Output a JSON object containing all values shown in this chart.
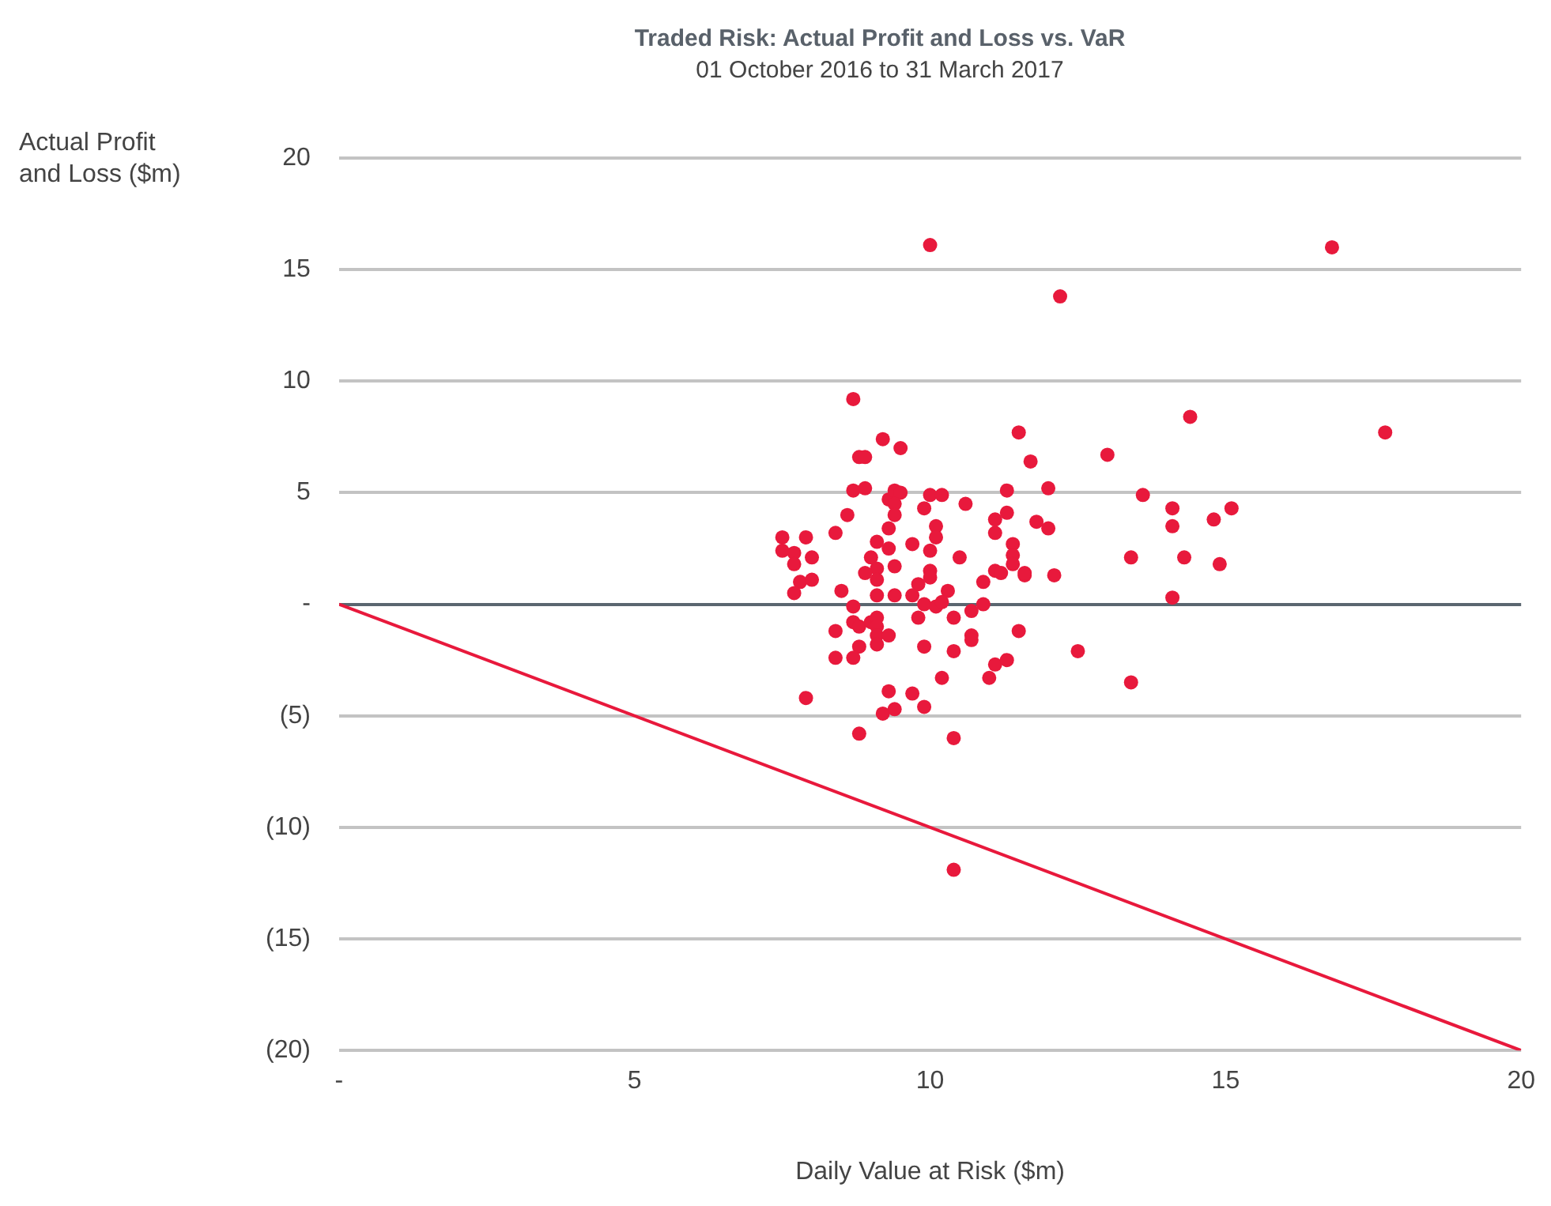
{
  "chart_data": {
    "type": "scatter",
    "title": "Traded Risk: Actual Profit and Loss vs. VaR",
    "subtitle": "01 October 2016 to 31 March 2017",
    "xlabel": "Daily Value at Risk ($m)",
    "ylabel": "Actual Profit and Loss ($m)",
    "xlim": [
      0,
      20
    ],
    "xticks": [
      {
        "value": 0,
        "label": "-"
      },
      5,
      10,
      15,
      20
    ],
    "ylim": [
      -20,
      20
    ],
    "yticks": [
      {
        "value": -20,
        "label": "(20)"
      },
      {
        "value": -15,
        "label": "(15)"
      },
      {
        "value": -10,
        "label": "(10)"
      },
      {
        "value": -5,
        "label": "(5)"
      },
      {
        "value": 0,
        "label": "-"
      },
      5,
      10,
      15,
      20
    ],
    "grid": "y",
    "legend": false,
    "marker": "circle",
    "series": [
      {
        "type": "scatter",
        "color": "#e8193c",
        "x": [
          10.0,
          16.8,
          12.2,
          17.7,
          14.4,
          8.7,
          13.0,
          11.5,
          11.7,
          9.2,
          9.5,
          8.8,
          8.9,
          13.6,
          14.1,
          15.1,
          14.8,
          14.1,
          13.4,
          14.3,
          14.9,
          14.1,
          13.4,
          12.5,
          10.4,
          10.4,
          7.9,
          8.8,
          8.7,
          8.9,
          9.3,
          9.4,
          9.5,
          9.4,
          9.4,
          9.9,
          10.0,
          10.2,
          10.6,
          11.3,
          11.1,
          11.3,
          11.1,
          11.4,
          11.4,
          11.4,
          11.1,
          11.2,
          11.6,
          8.6,
          8.4,
          7.5,
          7.9,
          7.5,
          7.7,
          7.7,
          8.0,
          7.8,
          8.0,
          7.7,
          8.5,
          9.3,
          9.1,
          9.3,
          9.0,
          9.7,
          10.0,
          10.1,
          10.1,
          10.5,
          9.4,
          9.1,
          8.9,
          9.1,
          10.0,
          10.0,
          9.8,
          9.7,
          9.4,
          9.1,
          10.3,
          10.9,
          9.9,
          10.1,
          10.2,
          10.7,
          10.9,
          10.4,
          9.8,
          11.5,
          8.4,
          8.7,
          8.8,
          9.0,
          9.1,
          9.1,
          9.1,
          9.3,
          10.7,
          10.7,
          8.8,
          9.1,
          8.4,
          8.7,
          9.9,
          10.4,
          11.1,
          11.3,
          10.2,
          11.0,
          9.3,
          9.7,
          9.2,
          9.4,
          9.9,
          8.7,
          11.8,
          12.0,
          11.6,
          12.1,
          12.0
        ],
        "values": [
          16.1,
          16.0,
          13.8,
          7.7,
          8.4,
          9.2,
          6.7,
          7.7,
          6.4,
          7.4,
          7.0,
          6.6,
          6.6,
          4.9,
          4.3,
          4.3,
          3.8,
          3.5,
          2.1,
          2.1,
          1.8,
          0.3,
          -3.5,
          -2.1,
          -6.0,
          -11.9,
          -4.2,
          -5.8,
          5.1,
          5.2,
          4.7,
          5.1,
          5.0,
          4.5,
          4.0,
          4.3,
          4.9,
          4.9,
          4.5,
          5.1,
          3.8,
          4.1,
          3.2,
          2.7,
          2.2,
          1.8,
          1.5,
          1.4,
          1.3,
          4.0,
          3.2,
          3.0,
          3.0,
          2.4,
          2.3,
          1.8,
          2.1,
          1.0,
          1.1,
          0.5,
          0.6,
          3.4,
          2.8,
          2.5,
          2.1,
          2.7,
          2.4,
          3.5,
          3.0,
          2.1,
          1.7,
          1.6,
          1.4,
          1.1,
          1.5,
          1.2,
          0.9,
          0.4,
          0.4,
          0.4,
          0.6,
          1.0,
          0.0,
          -0.1,
          0.1,
          -0.3,
          0.0,
          -0.6,
          -0.6,
          -1.2,
          -1.2,
          -0.8,
          -1.0,
          -0.8,
          -0.6,
          -1.0,
          -1.4,
          -1.4,
          -1.4,
          -1.6,
          -1.9,
          -1.8,
          -2.4,
          -2.4,
          -1.9,
          -2.1,
          -2.7,
          -2.5,
          -3.3,
          -3.3,
          -3.9,
          -4.0,
          -4.9,
          -4.7,
          -4.6,
          -0.1,
          3.7,
          3.4,
          1.4,
          1.3,
          5.2
        ]
      },
      {
        "type": "line",
        "color": "#e8193c",
        "marker": "none",
        "line_style": "solid",
        "x": [
          0,
          20
        ],
        "values": [
          0,
          -20
        ]
      }
    ]
  }
}
